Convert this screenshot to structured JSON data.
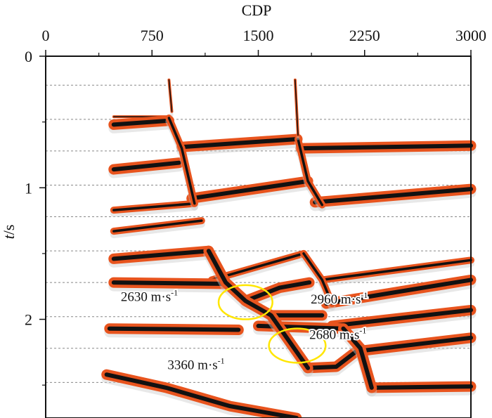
{
  "chart_data": {
    "type": "line",
    "title": "",
    "xlabel": "CDP",
    "ylabel_italic": "t",
    "ylabel_rest": "/s",
    "xlim": [
      0,
      3000
    ],
    "ylim": [
      0,
      2.75
    ],
    "xticks": [
      0,
      750,
      1500,
      2250,
      3000
    ],
    "xtick_labels": [
      "0",
      "750",
      "1500",
      "2250",
      "3000"
    ],
    "xminor": [
      375,
      1125,
      1875,
      2625
    ],
    "yticks": [
      0,
      1,
      2
    ],
    "ytick_labels": [
      "0",
      "1",
      "2"
    ],
    "yminor": [
      0.5,
      1.5,
      2.5
    ],
    "gridlines_t": [
      0.22,
      0.48,
      0.72,
      0.98,
      1.22,
      1.48,
      1.72,
      1.98,
      2.22,
      2.48
    ],
    "colors": {
      "event": "#e8541e",
      "core": "#111111",
      "grid": "#888888",
      "ellipse": "#ffe600"
    },
    "series": [
      {
        "name": "horizon-01",
        "x": [
          480,
          870,
          880
        ],
        "y": [
          0.46,
          0.46,
          0.47
        ],
        "wide": false,
        "thin": true
      },
      {
        "name": "horizon-02",
        "x": [
          480,
          870
        ],
        "y": [
          0.52,
          0.49
        ],
        "wide": true
      },
      {
        "name": "horizon-03",
        "x": [
          960,
          1775
        ],
        "y": [
          0.69,
          0.63
        ],
        "wide": true
      },
      {
        "name": "horizon-04",
        "x": [
          1800,
          3000
        ],
        "y": [
          0.7,
          0.68
        ],
        "wide": true
      },
      {
        "name": "horizon-05",
        "x": [
          480,
          940
        ],
        "y": [
          0.86,
          0.81
        ],
        "wide": true
      },
      {
        "name": "horizon-06",
        "x": [
          1030,
          1850
        ],
        "y": [
          1.08,
          0.95
        ],
        "wide": true
      },
      {
        "name": "horizon-07",
        "x": [
          1900,
          3000
        ],
        "y": [
          1.11,
          1.01
        ],
        "wide": true
      },
      {
        "name": "horizon-08",
        "x": [
          480,
          1050
        ],
        "y": [
          1.17,
          1.12
        ],
        "wide": false
      },
      {
        "name": "horizon-09",
        "x": [
          480,
          1100
        ],
        "y": [
          1.33,
          1.25
        ],
        "wide": false
      },
      {
        "name": "horizon-10",
        "x": [
          480,
          1150
        ],
        "y": [
          1.54,
          1.48
        ],
        "wide": true
      },
      {
        "name": "horizon-11",
        "x": [
          1170,
          1820
        ],
        "y": [
          1.7,
          1.5
        ],
        "wide": false
      },
      {
        "name": "horizon-12",
        "x": [
          1950,
          3000
        ],
        "y": [
          1.7,
          1.55
        ],
        "wide": false
      },
      {
        "name": "horizon-13",
        "x": [
          480,
          1270
        ],
        "y": [
          1.72,
          1.73
        ],
        "wide": true
      },
      {
        "name": "horizon-14",
        "x": [
          1410,
          1650,
          1860
        ],
        "y": [
          1.86,
          1.76,
          1.72
        ],
        "wide": true
      },
      {
        "name": "horizon-15",
        "x": [
          1980,
          3000
        ],
        "y": [
          1.88,
          1.7
        ],
        "wide": true
      },
      {
        "name": "horizon-16",
        "x": [
          1590,
          1950
        ],
        "y": [
          1.97,
          1.97
        ],
        "wide": true
      },
      {
        "name": "horizon-17",
        "x": [
          2020,
          3000
        ],
        "y": [
          2.05,
          1.93
        ],
        "wide": true
      },
      {
        "name": "horizon-18",
        "x": [
          450,
          1360
        ],
        "y": [
          2.07,
          2.08
        ],
        "wide": true
      },
      {
        "name": "horizon-19",
        "x": [
          1500,
          2100
        ],
        "y": [
          2.05,
          2.07
        ],
        "wide": true
      },
      {
        "name": "horizon-20",
        "x": [
          2220,
          3000
        ],
        "y": [
          2.24,
          2.14
        ],
        "wide": true
      },
      {
        "name": "horizon-21",
        "x": [
          1850,
          2050,
          2220
        ],
        "y": [
          2.37,
          2.36,
          2.22
        ],
        "wide": true
      },
      {
        "name": "horizon-22",
        "x": [
          2300,
          3000
        ],
        "y": [
          2.52,
          2.51
        ],
        "wide": true
      },
      {
        "name": "horizon-23",
        "x": [
          430,
          850,
          1300,
          1770
        ],
        "y": [
          2.42,
          2.52,
          2.66,
          2.75
        ],
        "wide": true
      },
      {
        "name": "dipping-event-a",
        "x": [
          870,
          960,
          1050
        ],
        "y": [
          0.47,
          0.7,
          1.12
        ],
        "wide": false,
        "steep": true
      },
      {
        "name": "dipping-event-b",
        "x": [
          1780,
          1850,
          1950
        ],
        "y": [
          0.63,
          0.95,
          1.13
        ],
        "wide": false,
        "steep": true
      },
      {
        "name": "dipping-event-c",
        "x": [
          1150,
          1270,
          1410,
          1590,
          1850
        ],
        "y": [
          1.48,
          1.72,
          1.86,
          1.97,
          2.37
        ],
        "wide": true,
        "steep": true
      },
      {
        "name": "dipping-event-d",
        "x": [
          1820,
          1950,
          2020
        ],
        "y": [
          1.5,
          1.7,
          1.88
        ],
        "wide": false,
        "steep": true
      },
      {
        "name": "dipping-event-e",
        "x": [
          2100,
          2220,
          2300
        ],
        "y": [
          2.07,
          2.22,
          2.52
        ],
        "wide": true,
        "steep": true
      },
      {
        "name": "diffraction-a",
        "x": [
          870,
          890
        ],
        "y": [
          0.18,
          0.42
        ],
        "wide": false,
        "thin": true
      },
      {
        "name": "diffraction-b",
        "x": [
          1760,
          1780
        ],
        "y": [
          0.18,
          0.6
        ],
        "wide": false,
        "thin": true
      }
    ],
    "annotations": [
      {
        "id": "v1",
        "base": "2630 m·s",
        "exp": "-1",
        "x": 530,
        "t": 1.86
      },
      {
        "id": "v2",
        "base": "2960 m·s",
        "exp": "-1",
        "x": 1870,
        "t": 1.88
      },
      {
        "id": "v3",
        "base": "2680 m·s",
        "exp": "-1",
        "x": 1860,
        "t": 2.15
      },
      {
        "id": "v4",
        "base": "3360 m·s",
        "exp": "-1",
        "x": 860,
        "t": 2.38
      }
    ],
    "ellipses": [
      {
        "id": "e1",
        "cx": 1410,
        "cy": 1.87,
        "rx": 190,
        "ry": 0.13
      },
      {
        "id": "e2",
        "cx": 1775,
        "cy": 2.2,
        "rx": 200,
        "ry": 0.13
      }
    ]
  }
}
